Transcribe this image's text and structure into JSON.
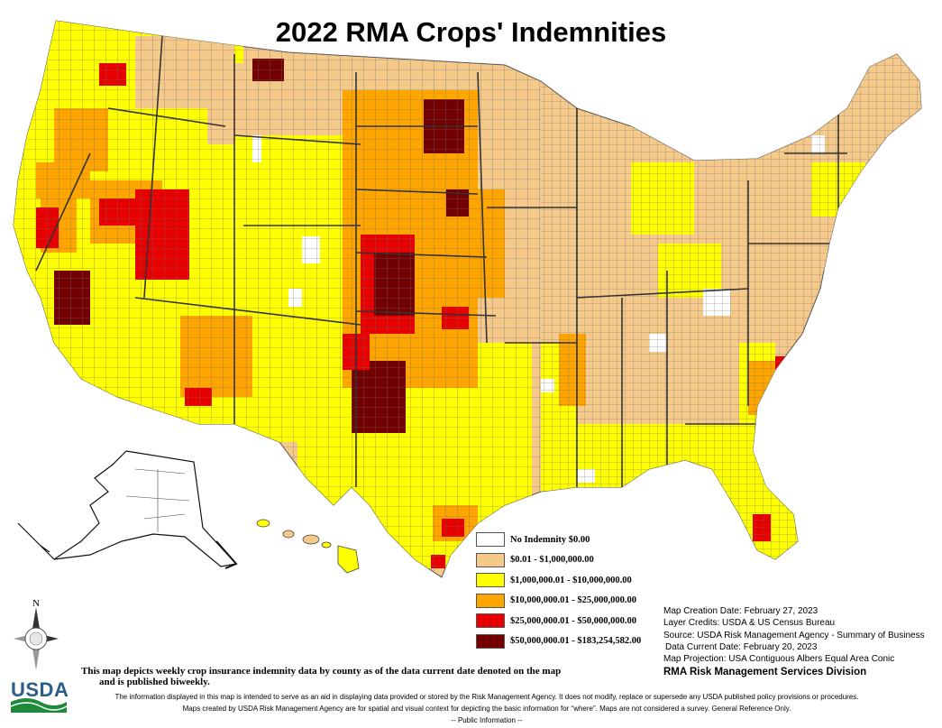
{
  "title": "2022 RMA Crops' Indemnities",
  "legend": {
    "items": [
      {
        "label": "No Indemnity $0.00",
        "color": "#ffffff"
      },
      {
        "label": "$0.01 - $1,000,000.00",
        "color": "#f5c98a"
      },
      {
        "label": "$1,000,000.01 - $10,000,000.00",
        "color": "#ffff00"
      },
      {
        "label": "$10,000,000.01 - $25,000,000.00",
        "color": "#ffa500"
      },
      {
        "label": "$25,000,000.01 - $50,000,000.00",
        "color": "#e60000"
      },
      {
        "label": "$50,000,000.01 - $183,254,582.00",
        "color": "#730000"
      }
    ]
  },
  "metadata": {
    "creation_date": "Map Creation Date: February 27, 2023",
    "layer_credits": "Layer Credits: USDA & US Census Bureau",
    "source": "Source: USDA Risk Management Agency - Summary of Business",
    "data_current": "Data Current Date: February 20, 2023",
    "projection": "Map Projection:  USA Contiguous Albers Equal Area Conic",
    "division": "RMA Risk Management Services Division"
  },
  "description": {
    "line1": "This map depicts weekly crop insurance indemnity data by county as of the data current date denoted on the map",
    "line2": "and is published biweekly."
  },
  "disclaimer": {
    "line1": "The information displayed in this map is intended to serve as an aid in displaying data provided or stored by the Risk Management Agency. It does not modify, replace or supersede any USDA published policy provisions or procedures.",
    "line2": "Maps created by USDA Risk Management Agency are for spatial and visual context for depicting the basic information for “where”. Maps are not considered a survey. General Reference Only.",
    "line3": "-- Public Information --"
  },
  "compass_letter": "N",
  "logo_text": "USDA",
  "map": {
    "icons": [
      "contiguous-us-choropleth",
      "alaska-inset",
      "hawaii-inset"
    ],
    "colors": {
      "outline": "#555555",
      "state_border": "#333333"
    }
  }
}
